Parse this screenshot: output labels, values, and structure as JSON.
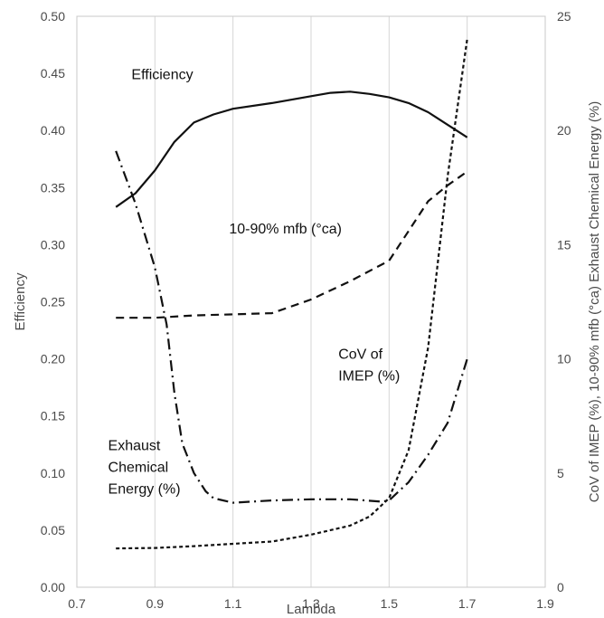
{
  "chart_data": {
    "type": "line",
    "xlabel": "Lambda",
    "ylabel": "Efficiency",
    "y2label": "CoV of IMEP (%), 10-90% mfb (°ca) Exhaust Chemical Energy (%)",
    "xlim": [
      0.7,
      1.9
    ],
    "ylim": [
      0.0,
      0.5
    ],
    "y2lim": [
      0,
      25
    ],
    "x_ticks": [
      "0.7",
      "0.9",
      "1.1",
      "1.3",
      "1.5",
      "1.7",
      "1.9"
    ],
    "y_ticks": [
      "0.00",
      "0.05",
      "0.10",
      "0.15",
      "0.20",
      "0.25",
      "0.30",
      "0.35",
      "0.40",
      "0.45",
      "0.50"
    ],
    "y2_ticks": [
      "0",
      "5",
      "10",
      "15",
      "20",
      "25"
    ],
    "grid": "vertical",
    "series": [
      {
        "name": "Efficiency",
        "axis": "left",
        "style": "solid",
        "points": [
          [
            0.8,
            0.333
          ],
          [
            0.85,
            0.345
          ],
          [
            0.9,
            0.365
          ],
          [
            0.95,
            0.39
          ],
          [
            1.0,
            0.407
          ],
          [
            1.05,
            0.414
          ],
          [
            1.1,
            0.419
          ],
          [
            1.2,
            0.424
          ],
          [
            1.3,
            0.43
          ],
          [
            1.35,
            0.433
          ],
          [
            1.4,
            0.434
          ],
          [
            1.45,
            0.432
          ],
          [
            1.5,
            0.429
          ],
          [
            1.55,
            0.424
          ],
          [
            1.6,
            0.416
          ],
          [
            1.65,
            0.405
          ],
          [
            1.7,
            0.394
          ]
        ]
      },
      {
        "name": "10-90% mfb (°ca)",
        "axis": "right",
        "style": "dashed",
        "points": [
          [
            0.8,
            11.8
          ],
          [
            0.9,
            11.8
          ],
          [
            1.0,
            11.9
          ],
          [
            1.1,
            11.95
          ],
          [
            1.2,
            12.0
          ],
          [
            1.3,
            12.6
          ],
          [
            1.4,
            13.4
          ],
          [
            1.5,
            14.3
          ],
          [
            1.55,
            15.6
          ],
          [
            1.6,
            16.9
          ],
          [
            1.65,
            17.6
          ],
          [
            1.7,
            18.2
          ]
        ]
      },
      {
        "name": "CoV of IMEP (%)",
        "axis": "right",
        "style": "dotted",
        "points": [
          [
            0.8,
            1.7
          ],
          [
            0.9,
            1.72
          ],
          [
            1.0,
            1.8
          ],
          [
            1.1,
            1.9
          ],
          [
            1.2,
            2.0
          ],
          [
            1.3,
            2.3
          ],
          [
            1.4,
            2.7
          ],
          [
            1.45,
            3.1
          ],
          [
            1.5,
            3.9
          ],
          [
            1.55,
            6.0
          ],
          [
            1.6,
            10.5
          ],
          [
            1.65,
            18.0
          ],
          [
            1.7,
            24.0
          ]
        ]
      },
      {
        "name": "Exhaust Chemical Energy (%)",
        "axis": "right",
        "style": "dashdot",
        "points": [
          [
            0.8,
            19.1
          ],
          [
            0.85,
            16.8
          ],
          [
            0.9,
            14.0
          ],
          [
            0.93,
            11.5
          ],
          [
            0.95,
            8.5
          ],
          [
            0.97,
            6.3
          ],
          [
            1.0,
            5.0
          ],
          [
            1.03,
            4.2
          ],
          [
            1.05,
            3.9
          ],
          [
            1.1,
            3.7
          ],
          [
            1.2,
            3.8
          ],
          [
            1.3,
            3.85
          ],
          [
            1.4,
            3.85
          ],
          [
            1.48,
            3.75
          ],
          [
            1.5,
            3.8
          ],
          [
            1.55,
            4.6
          ],
          [
            1.6,
            5.8
          ],
          [
            1.65,
            7.2
          ],
          [
            1.7,
            10.0
          ]
        ]
      }
    ],
    "annotations": [
      {
        "lines": [
          "Efficiency"
        ],
        "x": 0.84,
        "y": 0.445,
        "axis": "left"
      },
      {
        "lines": [
          "10-90% mfb (°ca)"
        ],
        "x": 1.09,
        "y": 0.31,
        "axis": "left"
      },
      {
        "lines": [
          "CoV of",
          "IMEP (%)"
        ],
        "x": 1.37,
        "y": 0.2,
        "axis": "left"
      },
      {
        "lines": [
          "Exhaust",
          "Chemical",
          "Energy (%)"
        ],
        "x": 0.78,
        "y": 0.12,
        "axis": "left"
      }
    ]
  }
}
